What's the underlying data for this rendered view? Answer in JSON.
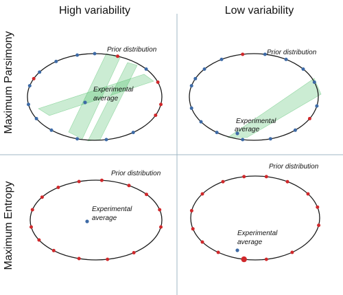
{
  "figure": {
    "columns": [
      "High variability",
      "Low variability"
    ],
    "rows": [
      "Maximum Parsimony",
      "Maximum Entropy"
    ]
  },
  "colors": {
    "ellipse": "#1a1a1a",
    "blue_point": "#3d6aa6",
    "red_point": "#d0282b",
    "band": "#2fb44e",
    "divider": "#9fb7c4"
  },
  "panels": [
    {
      "id": "parsimony-high",
      "prior_label": "Prior distribution",
      "average_label": [
        "Experimental",
        "average"
      ],
      "average_point": {
        "color": "blue"
      },
      "sample_points": "blue",
      "bands": 3
    },
    {
      "id": "parsimony-low",
      "prior_label": "Prior distribution",
      "average_label": [
        "Experimental",
        "average"
      ],
      "average_point": {
        "color": "blue"
      },
      "sample_points": "blue",
      "bands": 1
    },
    {
      "id": "entropy-high",
      "prior_label": "Prior distribution",
      "average_label": [
        "Experimental",
        "average"
      ],
      "average_point": {
        "color": "blue"
      },
      "sample_points": "red",
      "bands": 0
    },
    {
      "id": "entropy-low",
      "prior_label": "Prior distribution",
      "average_label": [
        "Experimental",
        "average"
      ],
      "average_point": {
        "color": "blue"
      },
      "sample_points": "red",
      "bands": 0
    }
  ]
}
